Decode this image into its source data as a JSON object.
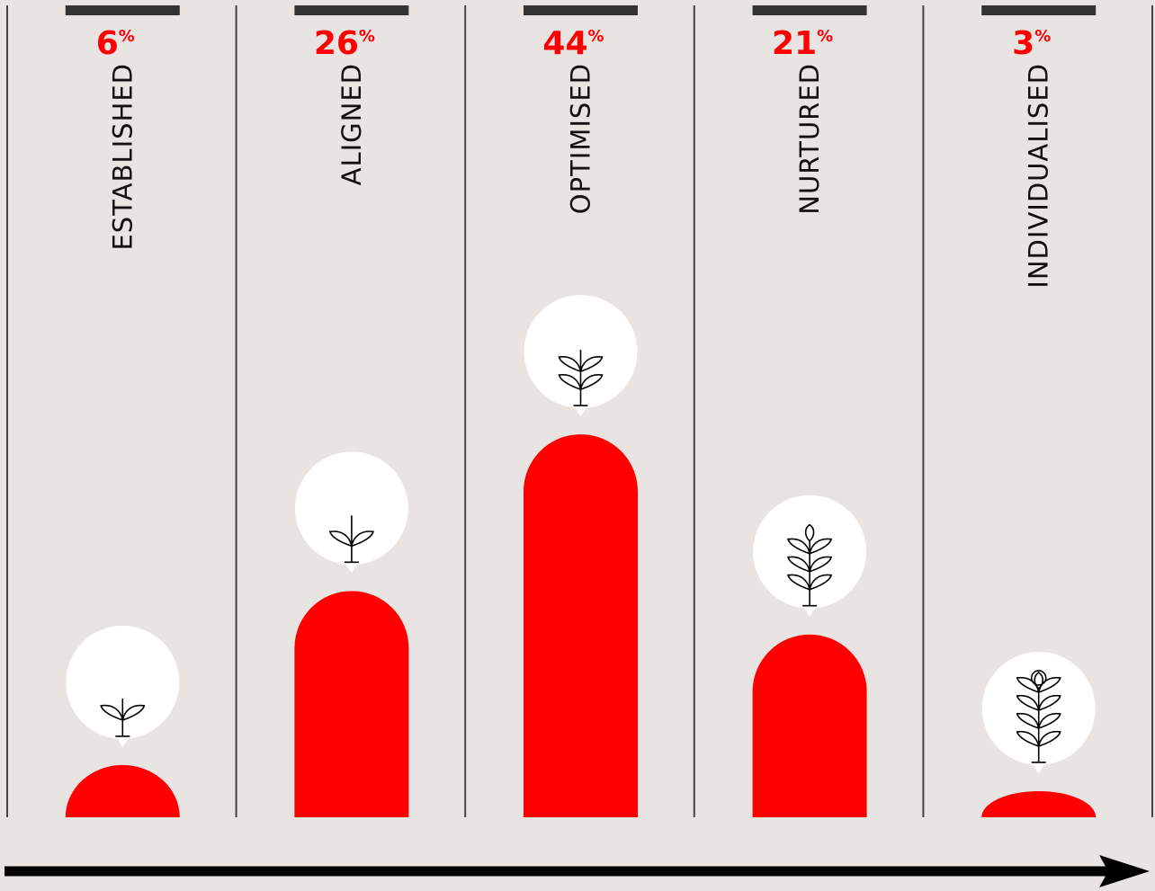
{
  "chart_data": {
    "type": "bar",
    "categories": [
      "ESTABLISHED",
      "ALIGNED",
      "OPTIMISED",
      "NURTURED",
      "INDIVIDUALISED"
    ],
    "values": [
      6,
      26,
      44,
      21,
      3
    ],
    "value_labels": [
      "6%",
      "26%",
      "44%",
      "21%",
      "3%"
    ],
    "color": "#ff0000"
  }
}
